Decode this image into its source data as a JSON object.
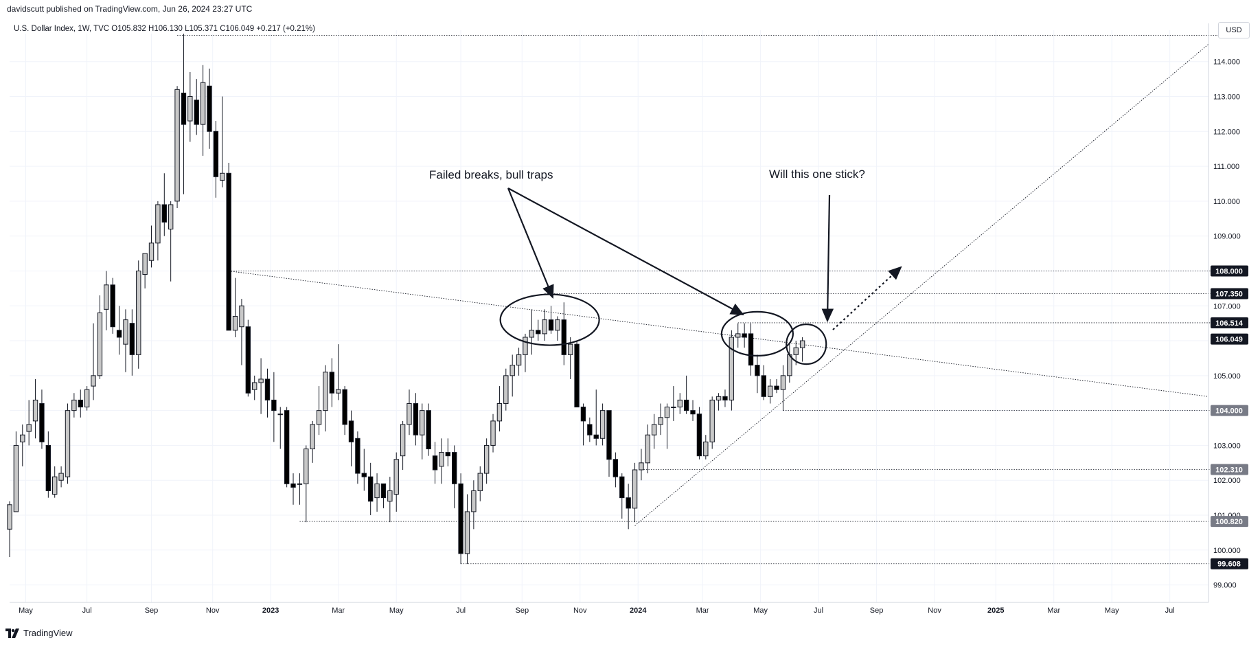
{
  "header": {
    "published": "davidscutt published on TradingView.com, Jun 26, 2024 23:27 UTC",
    "symbol_line": "U.S. Dollar Index, 1W, TVC  O105.832  H106.130  L105.371  C106.049  +0.217 (+0.21%)",
    "currency": "USD"
  },
  "footer": {
    "brand": "TradingView",
    "logo_icon": "tradingview-logo-icon"
  },
  "chart_data": {
    "type": "candlestick",
    "title": "U.S. Dollar Index, 1W, TVC",
    "ylim": [
      98.5,
      114.9
    ],
    "y_ticks": [
      99,
      100,
      101,
      102,
      103,
      104,
      105,
      106,
      107,
      108,
      109,
      110,
      111,
      112,
      113,
      114
    ],
    "y_tick_labels": [
      "99.000",
      "100.000",
      "101.000",
      "102.000",
      "103.000",
      "104.000",
      "105.000",
      "106.000",
      "107.000",
      "108.000",
      "109.000",
      "110.000",
      "111.000",
      "112.000",
      "113.000",
      "114.000"
    ],
    "x_range_weeks": [
      0,
      186
    ],
    "x_ticks": [
      {
        "label": "May",
        "week": 2.5,
        "bold": false
      },
      {
        "label": "Jul",
        "week": 12,
        "bold": false
      },
      {
        "label": "Sep",
        "week": 22,
        "bold": false
      },
      {
        "label": "Nov",
        "week": 31.5,
        "bold": false
      },
      {
        "label": "2023",
        "week": 40.5,
        "bold": true
      },
      {
        "label": "Mar",
        "week": 51,
        "bold": false
      },
      {
        "label": "May",
        "week": 60,
        "bold": false
      },
      {
        "label": "Jul",
        "week": 70,
        "bold": false
      },
      {
        "label": "Sep",
        "week": 79.5,
        "bold": false
      },
      {
        "label": "Nov",
        "week": 88.5,
        "bold": false
      },
      {
        "label": "2024",
        "week": 97.5,
        "bold": true
      },
      {
        "label": "Mar",
        "week": 107.5,
        "bold": false
      },
      {
        "label": "May",
        "week": 116.5,
        "bold": false
      },
      {
        "label": "Jul",
        "week": 125.5,
        "bold": false
      },
      {
        "label": "Sep",
        "week": 134.5,
        "bold": false
      },
      {
        "label": "Nov",
        "week": 143.5,
        "bold": false
      },
      {
        "label": "2025",
        "week": 153,
        "bold": true
      },
      {
        "label": "Mar",
        "week": 162,
        "bold": false
      },
      {
        "label": "May",
        "week": 171,
        "bold": false
      },
      {
        "label": "Jul",
        "week": 180,
        "bold": false
      }
    ],
    "candles": [
      {
        "week": 0,
        "o": 100.6,
        "h": 101.4,
        "l": 99.8,
        "c": 101.3
      },
      {
        "week": 1,
        "o": 101.1,
        "h": 103.4,
        "l": 101.1,
        "c": 103.0
      },
      {
        "week": 2,
        "o": 103.1,
        "h": 103.6,
        "l": 102.4,
        "c": 103.3
      },
      {
        "week": 3,
        "o": 103.4,
        "h": 104.3,
        "l": 103.0,
        "c": 103.6
      },
      {
        "week": 4,
        "o": 103.7,
        "h": 104.9,
        "l": 103.2,
        "c": 104.3
      },
      {
        "week": 5,
        "o": 104.2,
        "h": 104.6,
        "l": 102.9,
        "c": 103.1
      },
      {
        "week": 6,
        "o": 103.0,
        "h": 103.4,
        "l": 101.5,
        "c": 101.7
      },
      {
        "week": 7,
        "o": 101.6,
        "h": 102.4,
        "l": 101.5,
        "c": 102.1
      },
      {
        "week": 8,
        "o": 102.0,
        "h": 102.4,
        "l": 101.8,
        "c": 102.2
      },
      {
        "week": 9,
        "o": 102.1,
        "h": 104.2,
        "l": 101.9,
        "c": 104.0
      },
      {
        "week": 10,
        "o": 104.0,
        "h": 104.5,
        "l": 103.8,
        "c": 104.3
      },
      {
        "week": 11,
        "o": 104.3,
        "h": 104.6,
        "l": 103.8,
        "c": 104.1
      },
      {
        "week": 12,
        "o": 104.1,
        "h": 104.7,
        "l": 104.0,
        "c": 104.6
      },
      {
        "week": 13,
        "o": 104.7,
        "h": 106.5,
        "l": 104.3,
        "c": 105.0
      },
      {
        "week": 14,
        "o": 105.0,
        "h": 107.3,
        "l": 104.9,
        "c": 106.8
      },
      {
        "week": 15,
        "o": 106.9,
        "h": 108.0,
        "l": 106.3,
        "c": 107.6
      },
      {
        "week": 16,
        "o": 107.6,
        "h": 107.8,
        "l": 106.2,
        "c": 106.4
      },
      {
        "week": 17,
        "o": 106.3,
        "h": 107.0,
        "l": 105.6,
        "c": 106.1
      },
      {
        "week": 18,
        "o": 105.9,
        "h": 106.9,
        "l": 105.1,
        "c": 106.6
      },
      {
        "week": 19,
        "o": 106.5,
        "h": 106.9,
        "l": 105.0,
        "c": 105.6
      },
      {
        "week": 20,
        "o": 105.6,
        "h": 108.3,
        "l": 105.2,
        "c": 108.0
      },
      {
        "week": 21,
        "o": 107.9,
        "h": 108.5,
        "l": 107.5,
        "c": 108.5
      },
      {
        "week": 22,
        "o": 108.3,
        "h": 109.3,
        "l": 108.1,
        "c": 108.8
      },
      {
        "week": 23,
        "o": 108.8,
        "h": 110.0,
        "l": 108.3,
        "c": 109.9
      },
      {
        "week": 24,
        "o": 109.9,
        "h": 110.8,
        "l": 109.0,
        "c": 109.4
      },
      {
        "week": 25,
        "o": 109.2,
        "h": 110.0,
        "l": 107.7,
        "c": 109.9
      },
      {
        "week": 26,
        "o": 110.0,
        "h": 113.3,
        "l": 109.8,
        "c": 113.2
      },
      {
        "week": 27,
        "o": 113.1,
        "h": 114.8,
        "l": 110.2,
        "c": 112.2
      },
      {
        "week": 28,
        "o": 112.3,
        "h": 113.7,
        "l": 111.7,
        "c": 113.0
      },
      {
        "week": 29,
        "o": 112.9,
        "h": 113.5,
        "l": 111.9,
        "c": 112.2
      },
      {
        "week": 30,
        "o": 112.2,
        "h": 113.9,
        "l": 111.3,
        "c": 113.4
      },
      {
        "week": 31,
        "o": 113.3,
        "h": 113.8,
        "l": 111.5,
        "c": 112.0
      },
      {
        "week": 32,
        "o": 112.0,
        "h": 112.3,
        "l": 110.1,
        "c": 110.7
      },
      {
        "week": 33,
        "o": 110.6,
        "h": 113.0,
        "l": 110.4,
        "c": 110.8
      },
      {
        "week": 34,
        "o": 110.8,
        "h": 111.1,
        "l": 106.3,
        "c": 106.3
      },
      {
        "week": 35,
        "o": 106.3,
        "h": 107.8,
        "l": 106.1,
        "c": 106.7
      },
      {
        "week": 36,
        "o": 106.4,
        "h": 107.2,
        "l": 105.3,
        "c": 107.0
      },
      {
        "week": 37,
        "o": 106.4,
        "h": 106.6,
        "l": 104.4,
        "c": 104.5
      },
      {
        "week": 38,
        "o": 104.6,
        "h": 105.0,
        "l": 104.3,
        "c": 104.8
      },
      {
        "week": 39,
        "o": 104.8,
        "h": 105.5,
        "l": 103.9,
        "c": 104.9
      },
      {
        "week": 40,
        "o": 104.9,
        "h": 105.2,
        "l": 103.8,
        "c": 104.3
      },
      {
        "week": 41,
        "o": 104.3,
        "h": 105.1,
        "l": 103.1,
        "c": 104.0
      },
      {
        "week": 42,
        "o": 103.9,
        "h": 104.1,
        "l": 102.9,
        "c": 103.9
      },
      {
        "week": 43,
        "o": 104.0,
        "h": 104.1,
        "l": 101.8,
        "c": 101.9
      },
      {
        "week": 44,
        "o": 101.9,
        "h": 102.2,
        "l": 101.3,
        "c": 101.8
      },
      {
        "week": 45,
        "o": 101.9,
        "h": 102.2,
        "l": 101.3,
        "c": 101.9
      },
      {
        "week": 46,
        "o": 101.9,
        "h": 103.0,
        "l": 100.8,
        "c": 102.9
      },
      {
        "week": 47,
        "o": 102.9,
        "h": 103.7,
        "l": 102.5,
        "c": 103.6
      },
      {
        "week": 48,
        "o": 103.6,
        "h": 104.7,
        "l": 103.3,
        "c": 104.0
      },
      {
        "week": 49,
        "o": 104.0,
        "h": 105.3,
        "l": 103.4,
        "c": 105.1
      },
      {
        "week": 50,
        "o": 105.1,
        "h": 105.5,
        "l": 104.1,
        "c": 104.5
      },
      {
        "week": 51,
        "o": 104.5,
        "h": 105.9,
        "l": 104.3,
        "c": 104.6
      },
      {
        "week": 52,
        "o": 104.6,
        "h": 104.7,
        "l": 103.3,
        "c": 103.6
      },
      {
        "week": 53,
        "o": 103.7,
        "h": 104.0,
        "l": 102.4,
        "c": 103.1
      },
      {
        "week": 54,
        "o": 103.2,
        "h": 103.4,
        "l": 101.9,
        "c": 102.2
      },
      {
        "week": 55,
        "o": 102.2,
        "h": 102.9,
        "l": 101.7,
        "c": 102.1
      },
      {
        "week": 56,
        "o": 102.1,
        "h": 102.5,
        "l": 101.0,
        "c": 101.4
      },
      {
        "week": 57,
        "o": 101.5,
        "h": 102.2,
        "l": 101.1,
        "c": 101.9
      },
      {
        "week": 58,
        "o": 101.9,
        "h": 101.9,
        "l": 101.2,
        "c": 101.5
      },
      {
        "week": 59,
        "o": 101.4,
        "h": 102.1,
        "l": 100.8,
        "c": 101.7
      },
      {
        "week": 60,
        "o": 101.6,
        "h": 102.8,
        "l": 101.1,
        "c": 102.6
      },
      {
        "week": 61,
        "o": 102.7,
        "h": 103.7,
        "l": 102.3,
        "c": 103.6
      },
      {
        "week": 62,
        "o": 103.6,
        "h": 104.6,
        "l": 103.3,
        "c": 104.2
      },
      {
        "week": 63,
        "o": 104.2,
        "h": 104.5,
        "l": 103.0,
        "c": 103.3
      },
      {
        "week": 64,
        "o": 103.3,
        "h": 104.2,
        "l": 102.6,
        "c": 104.0
      },
      {
        "week": 65,
        "o": 104.0,
        "h": 104.2,
        "l": 102.7,
        "c": 102.9
      },
      {
        "week": 66,
        "o": 102.7,
        "h": 103.1,
        "l": 101.9,
        "c": 102.3
      },
      {
        "week": 67,
        "o": 102.4,
        "h": 103.2,
        "l": 101.9,
        "c": 102.8
      },
      {
        "week": 68,
        "o": 102.8,
        "h": 103.2,
        "l": 102.4,
        "c": 102.7
      },
      {
        "week": 69,
        "o": 102.8,
        "h": 103.0,
        "l": 101.2,
        "c": 101.9
      },
      {
        "week": 70,
        "o": 101.9,
        "h": 102.2,
        "l": 99.6,
        "c": 99.9
      },
      {
        "week": 71,
        "o": 99.9,
        "h": 101.6,
        "l": 99.6,
        "c": 101.1
      },
      {
        "week": 72,
        "o": 101.1,
        "h": 102.0,
        "l": 100.6,
        "c": 101.7
      },
      {
        "week": 73,
        "o": 101.7,
        "h": 102.4,
        "l": 101.4,
        "c": 102.2
      },
      {
        "week": 74,
        "o": 102.2,
        "h": 103.2,
        "l": 101.9,
        "c": 103.0
      },
      {
        "week": 75,
        "o": 103.0,
        "h": 103.9,
        "l": 102.8,
        "c": 103.7
      },
      {
        "week": 76,
        "o": 103.7,
        "h": 104.7,
        "l": 103.4,
        "c": 104.2
      },
      {
        "week": 77,
        "o": 104.2,
        "h": 105.2,
        "l": 104.0,
        "c": 105.0
      },
      {
        "week": 78,
        "o": 105.0,
        "h": 105.6,
        "l": 104.4,
        "c": 105.3
      },
      {
        "week": 79,
        "o": 105.3,
        "h": 105.8,
        "l": 105.0,
        "c": 105.6
      },
      {
        "week": 80,
        "o": 105.6,
        "h": 106.2,
        "l": 105.1,
        "c": 106.1
      },
      {
        "week": 81,
        "o": 106.1,
        "h": 106.9,
        "l": 105.6,
        "c": 106.3
      },
      {
        "week": 82,
        "o": 106.3,
        "h": 106.6,
        "l": 106.0,
        "c": 106.2
      },
      {
        "week": 83,
        "o": 106.2,
        "h": 106.9,
        "l": 106.0,
        "c": 106.6
      },
      {
        "week": 84,
        "o": 106.6,
        "h": 107.0,
        "l": 106.2,
        "c": 106.3
      },
      {
        "week": 85,
        "o": 106.3,
        "h": 106.7,
        "l": 106.0,
        "c": 106.6
      },
      {
        "week": 86,
        "o": 106.6,
        "h": 107.1,
        "l": 105.3,
        "c": 105.6
      },
      {
        "week": 87,
        "o": 105.6,
        "h": 106.1,
        "l": 104.9,
        "c": 105.9
      },
      {
        "week": 88,
        "o": 105.9,
        "h": 106.0,
        "l": 104.1,
        "c": 104.1
      },
      {
        "week": 89,
        "o": 104.1,
        "h": 104.2,
        "l": 103.0,
        "c": 103.7
      },
      {
        "week": 90,
        "o": 103.6,
        "h": 103.8,
        "l": 103.1,
        "c": 103.3
      },
      {
        "week": 91,
        "o": 103.3,
        "h": 104.6,
        "l": 103.0,
        "c": 103.2
      },
      {
        "week": 92,
        "o": 103.2,
        "h": 104.2,
        "l": 103.0,
        "c": 104.0
      },
      {
        "week": 93,
        "o": 104.0,
        "h": 104.0,
        "l": 102.1,
        "c": 102.6
      },
      {
        "week": 94,
        "o": 102.6,
        "h": 102.8,
        "l": 101.8,
        "c": 102.1
      },
      {
        "week": 95,
        "o": 102.1,
        "h": 102.2,
        "l": 100.9,
        "c": 101.5
      },
      {
        "week": 96,
        "o": 101.5,
        "h": 101.9,
        "l": 100.6,
        "c": 101.2
      },
      {
        "week": 97,
        "o": 101.2,
        "h": 102.5,
        "l": 100.8,
        "c": 102.3
      },
      {
        "week": 98,
        "o": 102.3,
        "h": 102.9,
        "l": 102.0,
        "c": 102.5
      },
      {
        "week": 99,
        "o": 102.5,
        "h": 103.6,
        "l": 102.2,
        "c": 103.3
      },
      {
        "week": 100,
        "o": 103.3,
        "h": 103.9,
        "l": 102.9,
        "c": 103.6
      },
      {
        "week": 101,
        "o": 103.6,
        "h": 104.2,
        "l": 103.3,
        "c": 103.8
      },
      {
        "week": 102,
        "o": 103.8,
        "h": 104.2,
        "l": 102.9,
        "c": 104.1
      },
      {
        "week": 103,
        "o": 104.1,
        "h": 104.7,
        "l": 103.7,
        "c": 104.1
      },
      {
        "week": 104,
        "o": 104.1,
        "h": 104.5,
        "l": 103.9,
        "c": 104.3
      },
      {
        "week": 105,
        "o": 104.3,
        "h": 105.0,
        "l": 103.9,
        "c": 104.0
      },
      {
        "week": 106,
        "o": 104.0,
        "h": 104.3,
        "l": 103.7,
        "c": 103.9
      },
      {
        "week": 107,
        "o": 103.9,
        "h": 104.1,
        "l": 102.6,
        "c": 102.7
      },
      {
        "week": 108,
        "o": 102.7,
        "h": 103.3,
        "l": 102.6,
        "c": 103.1
      },
      {
        "week": 109,
        "o": 103.1,
        "h": 104.4,
        "l": 102.9,
        "c": 104.3
      },
      {
        "week": 110,
        "o": 104.3,
        "h": 104.5,
        "l": 104.0,
        "c": 104.4
      },
      {
        "week": 111,
        "o": 104.4,
        "h": 104.6,
        "l": 104.1,
        "c": 104.3
      },
      {
        "week": 112,
        "o": 104.3,
        "h": 106.3,
        "l": 104.0,
        "c": 106.1
      },
      {
        "week": 113,
        "o": 106.1,
        "h": 106.5,
        "l": 105.8,
        "c": 106.2
      },
      {
        "week": 114,
        "o": 106.2,
        "h": 106.5,
        "l": 105.8,
        "c": 106.1
      },
      {
        "week": 115,
        "o": 106.2,
        "h": 106.5,
        "l": 105.0,
        "c": 105.3
      },
      {
        "week": 116,
        "o": 105.3,
        "h": 105.6,
        "l": 104.5,
        "c": 105.0
      },
      {
        "week": 117,
        "o": 105.0,
        "h": 105.3,
        "l": 104.3,
        "c": 104.4
      },
      {
        "week": 118,
        "o": 104.4,
        "h": 104.9,
        "l": 104.2,
        "c": 104.7
      },
      {
        "week": 119,
        "o": 104.7,
        "h": 104.9,
        "l": 104.5,
        "c": 104.6
      },
      {
        "week": 120,
        "o": 104.6,
        "h": 105.3,
        "l": 104.0,
        "c": 105.0
      },
      {
        "week": 121,
        "o": 105.0,
        "h": 105.9,
        "l": 104.8,
        "c": 105.6
      },
      {
        "week": 122,
        "o": 105.6,
        "h": 106.0,
        "l": 105.3,
        "c": 105.8
      },
      {
        "week": 123,
        "o": 105.8,
        "h": 106.1,
        "l": 105.4,
        "c": 106.0
      }
    ],
    "price_tags": [
      {
        "value": 108.0,
        "label": "108.000",
        "color": "#131722"
      },
      {
        "value": 107.35,
        "label": "107.350",
        "color": "#131722"
      },
      {
        "value": 106.514,
        "label": "106.514",
        "color": "#131722"
      },
      {
        "value": 106.049,
        "label": "106.049",
        "color": "#131722"
      },
      {
        "value": 104.0,
        "label": "104.000",
        "color": "#787b86"
      },
      {
        "value": 102.31,
        "label": "102.310",
        "color": "#787b86"
      },
      {
        "value": 100.82,
        "label": "100.820",
        "color": "#787b86"
      },
      {
        "value": 99.608,
        "label": "99.608",
        "color": "#131722"
      }
    ],
    "horizontal_levels": [
      {
        "value": 114.75,
        "from_week": 26,
        "to_week": 190
      },
      {
        "value": 108.0,
        "from_week": 34,
        "to_week": 190
      },
      {
        "value": 107.35,
        "from_week": 83,
        "to_week": 190
      },
      {
        "value": 106.514,
        "from_week": 113,
        "to_week": 190
      },
      {
        "value": 104.0,
        "from_week": 120,
        "to_week": 190
      },
      {
        "value": 102.31,
        "from_week": 98,
        "to_week": 190
      },
      {
        "value": 100.82,
        "from_week": 45,
        "to_week": 190
      },
      {
        "value": 99.608,
        "from_week": 70,
        "to_week": 190
      }
    ],
    "trendlines": [
      {
        "name": "descending-resistance",
        "from": [
          34,
          108.0
        ],
        "to": [
          186,
          104.4
        ],
        "style": "dotted"
      },
      {
        "name": "rising-support",
        "from": [
          97,
          100.7
        ],
        "to": [
          186,
          114.5
        ],
        "style": "dotted"
      }
    ],
    "annotations": {
      "failed_breaks_text": "Failed breaks, bull traps",
      "will_stick_text": "Will this one stick?"
    },
    "colors": {
      "bull_fill": "#c8c8c8",
      "bear_fill": "#000000",
      "line": "#131722",
      "grid": "#f0f3fa"
    },
    "grid": true
  }
}
